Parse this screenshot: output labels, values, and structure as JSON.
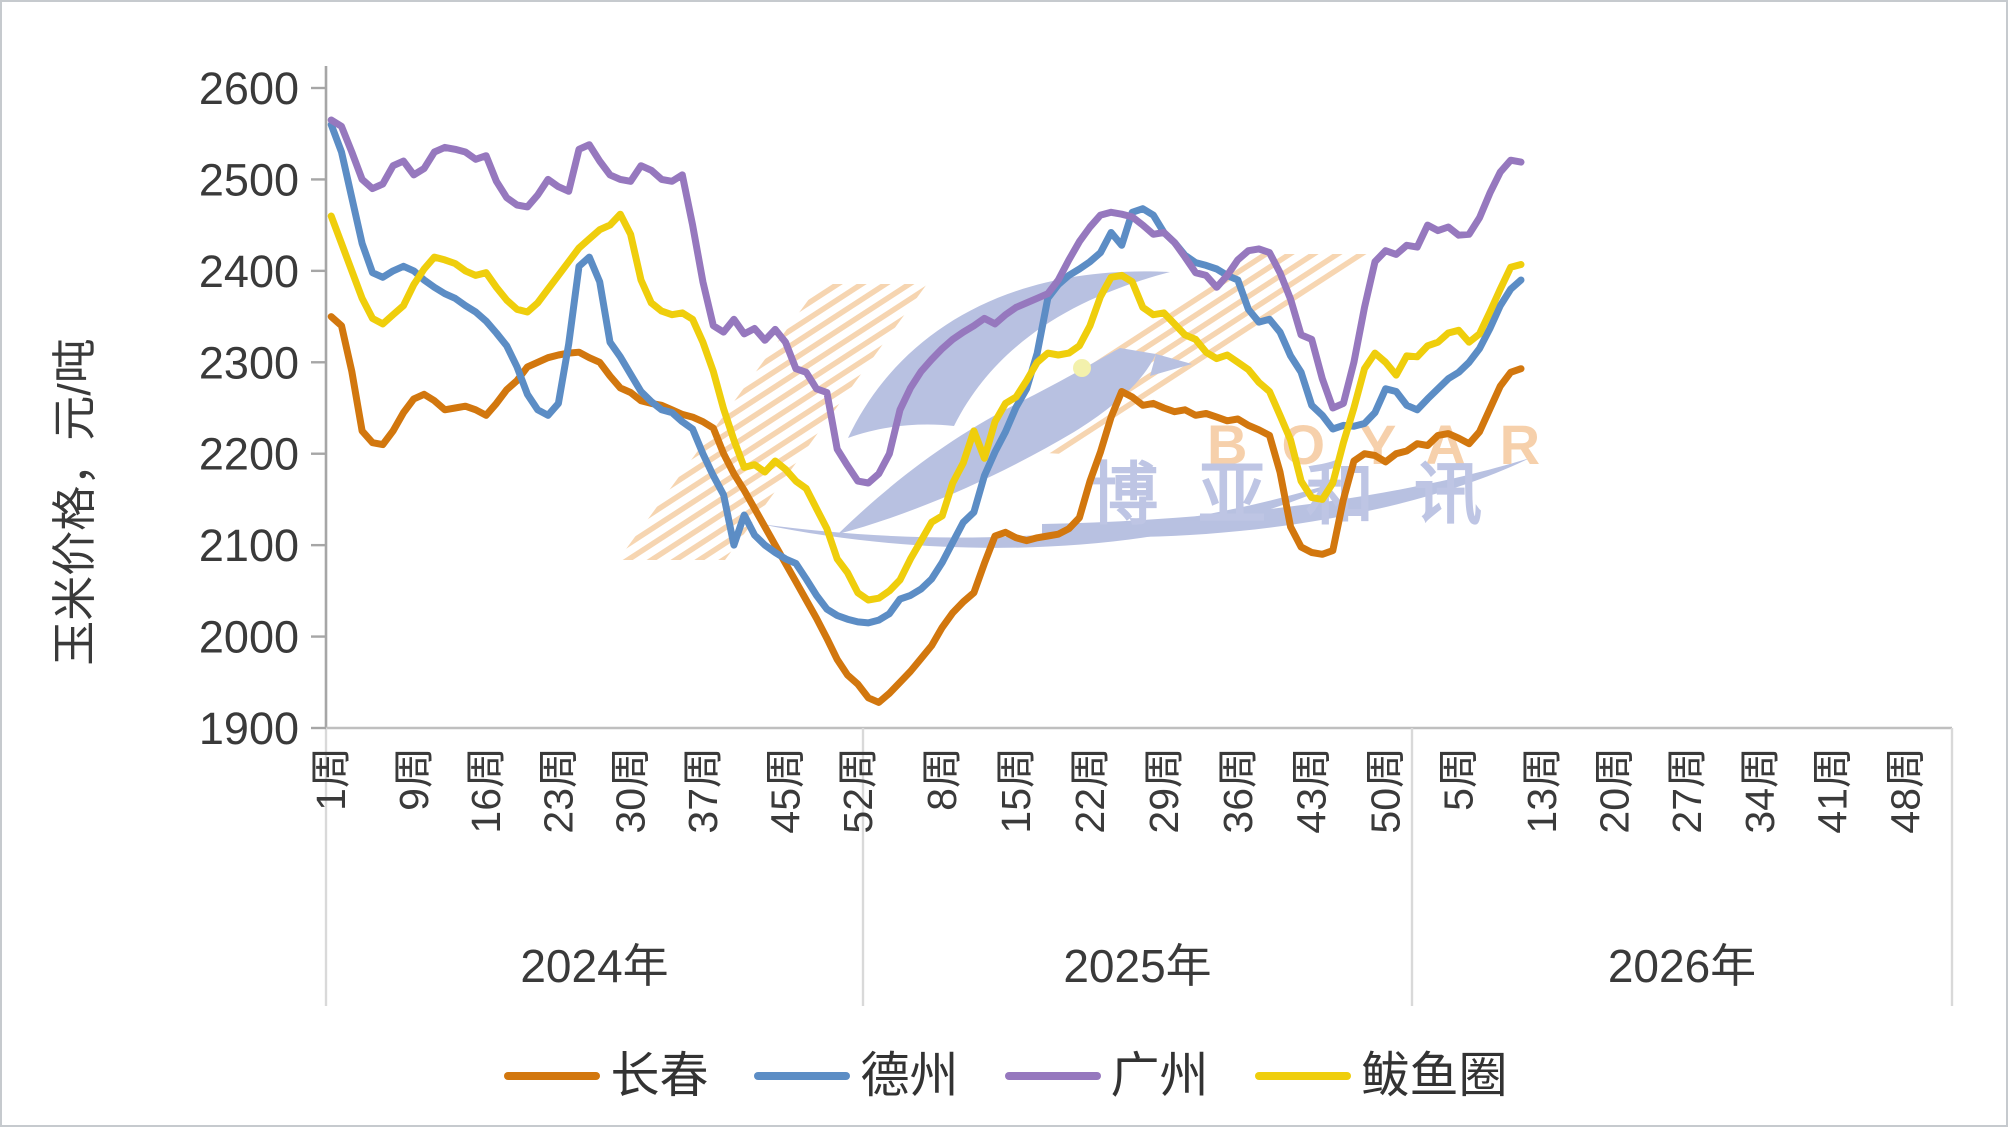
{
  "watermark": {
    "en": "BOYAR",
    "cn": "博亚和讯"
  },
  "legend": {
    "items": [
      {
        "label": "长春",
        "color": "#d2770e"
      },
      {
        "label": "德州",
        "color": "#5c8dc5"
      },
      {
        "label": "广州",
        "color": "#9678be"
      },
      {
        "label": "鲅鱼圈",
        "color": "#efce0c"
      }
    ]
  },
  "chart_data": {
    "type": "line",
    "title": "",
    "xlabel": "",
    "ylabel": "玉米价格，元/吨",
    "grid": "off",
    "legend_position": "bottom",
    "y_axis": {
      "min": 1900,
      "max": 2600,
      "tick_step": 100,
      "tick_labels": [
        "1900",
        "2000",
        "2100",
        "2200",
        "2300",
        "2400",
        "2500",
        "2600"
      ]
    },
    "x_axis": {
      "unit_suffix": "周",
      "year_groups": [
        {
          "label": "2024年",
          "weeks_total": 52,
          "ticks": [
            {
              "week": 1,
              "label": "1周"
            },
            {
              "week": 9,
              "label": "9周"
            },
            {
              "week": 16,
              "label": "16周"
            },
            {
              "week": 23,
              "label": "23周"
            },
            {
              "week": 30,
              "label": "30周"
            },
            {
              "week": 37,
              "label": "37周"
            },
            {
              "week": 45,
              "label": "45周"
            },
            {
              "week": 52,
              "label": "52周"
            }
          ]
        },
        {
          "label": "2025年",
          "weeks_total": 52,
          "ticks": [
            {
              "week": 8,
              "label": "8周"
            },
            {
              "week": 15,
              "label": "15周"
            },
            {
              "week": 22,
              "label": "22周"
            },
            {
              "week": 29,
              "label": "29周"
            },
            {
              "week": 36,
              "label": "36周"
            },
            {
              "week": 43,
              "label": "43周"
            },
            {
              "week": 50,
              "label": "50周"
            }
          ]
        },
        {
          "label": "2026年",
          "weeks_total": 52,
          "ticks": [
            {
              "week": 5,
              "label": "5周"
            },
            {
              "week": 13,
              "label": "13周"
            },
            {
              "week": 20,
              "label": "20周"
            },
            {
              "week": 27,
              "label": "27周"
            },
            {
              "week": 34,
              "label": "34周"
            },
            {
              "week": 41,
              "label": "41周"
            },
            {
              "week": 48,
              "label": "48周"
            }
          ]
        }
      ]
    },
    "series": [
      {
        "name": "长春",
        "color": "#d2770e",
        "values_by_year": [
          [
            2350,
            2340,
            2290,
            2225,
            2212,
            2210,
            2225,
            2245,
            2260,
            2265,
            2258,
            2248,
            2250,
            2252,
            2248,
            2242,
            2255,
            2270,
            2280,
            2295,
            2300,
            2305,
            2308,
            2310,
            2311,
            2305,
            2300,
            2285,
            2272,
            2267,
            2258,
            2255,
            2253,
            2248,
            2243,
            2240,
            2235,
            2228,
            2200,
            2178,
            2160,
            2140,
            2120,
            2100,
            2080,
            2060,
            2040,
            2020,
            1998,
            1975,
            1958,
            1948
          ],
          [
            1933,
            1928,
            1938,
            1950,
            1962,
            1976,
            1990,
            2010,
            2026,
            2038,
            2048,
            2080,
            2110,
            2114,
            2108,
            2105,
            2108,
            2110,
            2112,
            2118,
            2130,
            2170,
            2202,
            2240,
            2268,
            2262,
            2253,
            2255,
            2250,
            2246,
            2248,
            2242,
            2244,
            2240,
            2236,
            2238,
            2231,
            2226,
            2220,
            2180,
            2120,
            2098,
            2092,
            2090,
            2094,
            2150,
            2192,
            2200,
            2198,
            2191,
            2200,
            2203
          ],
          [
            2211,
            2209,
            2220,
            2222,
            2217,
            2211,
            2224,
            2249,
            2274,
            2289,
            2293
          ]
        ]
      },
      {
        "name": "德州",
        "color": "#5c8dc5",
        "values_by_year": [
          [
            2560,
            2530,
            2480,
            2430,
            2398,
            2393,
            2400,
            2405,
            2400,
            2390,
            2382,
            2375,
            2370,
            2362,
            2355,
            2345,
            2332,
            2318,
            2295,
            2265,
            2248,
            2242,
            2255,
            2320,
            2405,
            2415,
            2388,
            2322,
            2306,
            2287,
            2268,
            2257,
            2248,
            2245,
            2235,
            2227,
            2200,
            2176,
            2155,
            2100,
            2133,
            2111,
            2100,
            2092,
            2085,
            2080,
            2063,
            2045,
            2030,
            2023,
            2019,
            2016
          ],
          [
            2015,
            2018,
            2025,
            2041,
            2045,
            2052,
            2063,
            2081,
            2103,
            2125,
            2136,
            2176,
            2202,
            2224,
            2251,
            2271,
            2310,
            2370,
            2385,
            2395,
            2402,
            2410,
            2420,
            2442,
            2428,
            2464,
            2468,
            2461,
            2442,
            2431,
            2417,
            2409,
            2406,
            2402,
            2395,
            2390,
            2358,
            2344,
            2347,
            2333,
            2307,
            2289,
            2253,
            2242,
            2227,
            2231,
            2230,
            2233,
            2245,
            2271,
            2268,
            2253
          ],
          [
            2248,
            2260,
            2271,
            2282,
            2289,
            2300,
            2315,
            2337,
            2362,
            2380,
            2390
          ]
        ]
      },
      {
        "name": "广州",
        "color": "#9678be",
        "values_by_year": [
          [
            2565,
            2558,
            2530,
            2500,
            2490,
            2495,
            2515,
            2520,
            2505,
            2512,
            2530,
            2535,
            2533,
            2530,
            2522,
            2526,
            2498,
            2480,
            2472,
            2470,
            2483,
            2500,
            2492,
            2487,
            2533,
            2538,
            2520,
            2505,
            2500,
            2498,
            2515,
            2510,
            2500,
            2498,
            2505,
            2450,
            2388,
            2340,
            2333,
            2347,
            2331,
            2337,
            2324,
            2336,
            2322,
            2293,
            2289,
            2271,
            2267,
            2205,
            2187,
            2170
          ],
          [
            2168,
            2178,
            2200,
            2248,
            2272,
            2290,
            2303,
            2315,
            2325,
            2333,
            2340,
            2348,
            2342,
            2352,
            2360,
            2365,
            2370,
            2375,
            2390,
            2412,
            2432,
            2448,
            2461,
            2464,
            2462,
            2459,
            2450,
            2440,
            2442,
            2431,
            2415,
            2398,
            2395,
            2382,
            2395,
            2412,
            2422,
            2424,
            2420,
            2398,
            2369,
            2330,
            2325,
            2282,
            2250,
            2255,
            2300,
            2360,
            2410,
            2422,
            2418,
            2428
          ],
          [
            2426,
            2450,
            2444,
            2448,
            2439,
            2440,
            2458,
            2485,
            2508,
            2521,
            2519
          ]
        ]
      },
      {
        "name": "鲅鱼圈",
        "color": "#efce0c",
        "values_by_year": [
          [
            2460,
            2430,
            2400,
            2370,
            2348,
            2342,
            2352,
            2362,
            2385,
            2402,
            2415,
            2412,
            2408,
            2400,
            2395,
            2398,
            2382,
            2368,
            2358,
            2355,
            2365,
            2380,
            2395,
            2410,
            2425,
            2435,
            2445,
            2450,
            2462,
            2440,
            2390,
            2365,
            2356,
            2352,
            2354,
            2347,
            2322,
            2290,
            2249,
            2215,
            2185,
            2188,
            2180,
            2192,
            2183,
            2170,
            2162,
            2140,
            2118,
            2085,
            2070,
            2048
          ],
          [
            2040,
            2042,
            2050,
            2062,
            2085,
            2105,
            2125,
            2132,
            2168,
            2190,
            2225,
            2195,
            2235,
            2255,
            2262,
            2280,
            2300,
            2310,
            2308,
            2310,
            2318,
            2340,
            2372,
            2393,
            2395,
            2388,
            2360,
            2352,
            2354,
            2342,
            2330,
            2325,
            2311,
            2304,
            2308,
            2300,
            2292,
            2278,
            2268,
            2242,
            2215,
            2170,
            2152,
            2150,
            2168,
            2212,
            2250,
            2293,
            2310,
            2300,
            2286,
            2307
          ],
          [
            2306,
            2318,
            2322,
            2332,
            2335,
            2322,
            2331,
            2355,
            2380,
            2404,
            2407
          ]
        ]
      }
    ]
  }
}
